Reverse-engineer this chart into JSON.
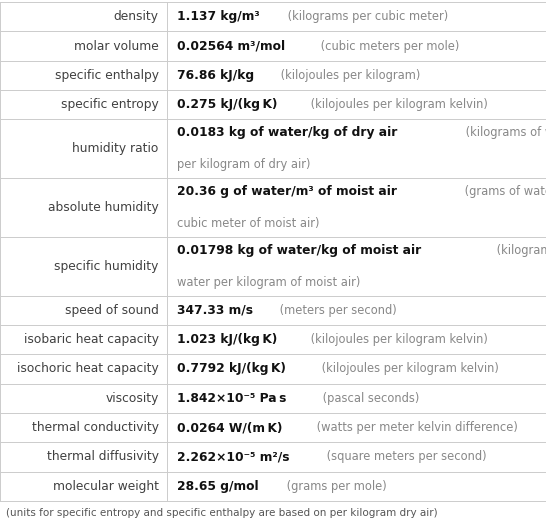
{
  "rows": [
    {
      "label": "density",
      "value_bold": "1.137 kg/m³",
      "value_normal": " (kilograms per cubic meter)",
      "multiline": false,
      "line2": ""
    },
    {
      "label": "molar volume",
      "value_bold": "0.02564 m³/mol",
      "value_normal": " (cubic meters per mole)",
      "multiline": false,
      "line2": ""
    },
    {
      "label": "specific enthalpy",
      "value_bold": "76.86 kJ/kg",
      "value_normal": " (kilojoules per kilogram)",
      "multiline": false,
      "line2": ""
    },
    {
      "label": "specific entropy",
      "value_bold": "0.275 kJ/(kg K)",
      "value_normal": " (kilojoules per kilogram kelvin)",
      "multiline": false,
      "line2": ""
    },
    {
      "label": "humidity ratio",
      "value_bold": "0.0183 kg of water/kg of dry air",
      "value_normal": " (kilograms of water",
      "multiline": true,
      "line2": "per kilogram of dry air)"
    },
    {
      "label": "absolute humidity",
      "value_bold": "20.36 g of water/m³ of moist air",
      "value_normal": " (grams of water per",
      "multiline": true,
      "line2": "cubic meter of moist air)"
    },
    {
      "label": "specific humidity",
      "value_bold": "0.01798 kg of water/kg of moist air",
      "value_normal": " (kilograms of",
      "multiline": true,
      "line2": "water per kilogram of moist air)"
    },
    {
      "label": "speed of sound",
      "value_bold": "347.33 m/s",
      "value_normal": " (meters per second)",
      "multiline": false,
      "line2": ""
    },
    {
      "label": "isobaric heat capacity",
      "value_bold": "1.023 kJ/(kg K)",
      "value_normal": " (kilojoules per kilogram kelvin)",
      "multiline": false,
      "line2": ""
    },
    {
      "label": "isochoric heat capacity",
      "value_bold": "0.7792 kJ/(kg K)",
      "value_normal": " (kilojoules per kilogram kelvin)",
      "multiline": false,
      "line2": ""
    },
    {
      "label": "viscosity",
      "value_bold": "1.842×10⁻⁵ Pa s",
      "value_normal": " (pascal seconds)",
      "multiline": false,
      "line2": ""
    },
    {
      "label": "thermal conductivity",
      "value_bold": "0.0264 W/(m K)",
      "value_normal": " (watts per meter kelvin difference)",
      "multiline": false,
      "line2": ""
    },
    {
      "label": "thermal diffusivity",
      "value_bold": "2.262×10⁻⁵ m²/s",
      "value_normal": " (square meters per second)",
      "multiline": false,
      "line2": ""
    },
    {
      "label": "molecular weight",
      "value_bold": "28.65 g/mol",
      "value_normal": " (grams per mole)",
      "multiline": false,
      "line2": ""
    }
  ],
  "footer": "(units for specific entropy and specific enthalpy are based on per kilogram dry air)",
  "bg_color": "#ffffff",
  "line_color": "#cccccc",
  "label_color": "#404040",
  "bold_color": "#111111",
  "normal_color": "#888888",
  "footer_color": "#555555",
  "col_split": 0.305,
  "font_size": 8.8,
  "footer_font_size": 7.5
}
